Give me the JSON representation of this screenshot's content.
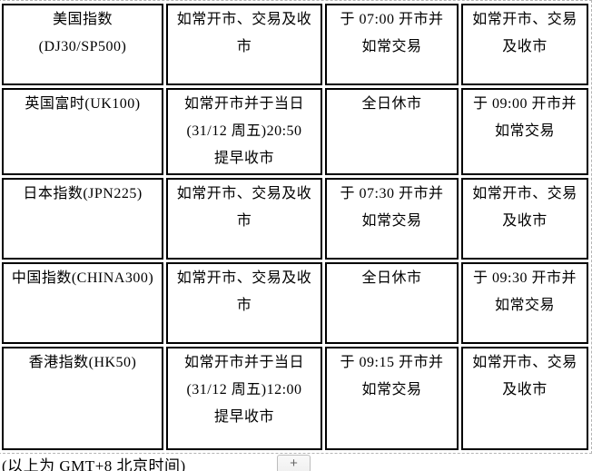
{
  "colors": {
    "cell_border": "#000000",
    "table_outline": "#b4b4b4",
    "text": "#000000",
    "button_border": "#bdbdbd",
    "button_bg": "#f5f5f5"
  },
  "table": {
    "rows": [
      {
        "cells": [
          "美国指数\n(DJ30/SP500)",
          "如常开市、交易及收\n市",
          "于 07:00 开市并\n如常交易",
          "如常开市、交易\n及收市"
        ]
      },
      {
        "cells": [
          "英国富时(UK100)",
          "如常开市并于当日\n(31/12 周五)20:50\n提早收市",
          "全日休市",
          "于 09:00 开市并\n如常交易"
        ]
      },
      {
        "cells": [
          "日本指数(JPN225)",
          "如常开市、交易及收\n市",
          "于 07:30 开市并\n如常交易",
          "如常开市、交易\n及收市"
        ]
      },
      {
        "cells": [
          "中国指数(CHINA300)",
          "如常开市、交易及收\n市",
          "全日休市",
          "于 09:30 开市并\n如常交易"
        ]
      },
      {
        "cells": [
          "香港指数(HK50)",
          "如常开市并于当日\n(31/12 周五)12:00\n提早收市",
          "于 09:15 开市并\n如常交易",
          "如常开市、交易\n及收市"
        ]
      }
    ]
  },
  "footer": {
    "note": "(以上为 GMT+8 北京时间)",
    "add_button_label": "+"
  }
}
